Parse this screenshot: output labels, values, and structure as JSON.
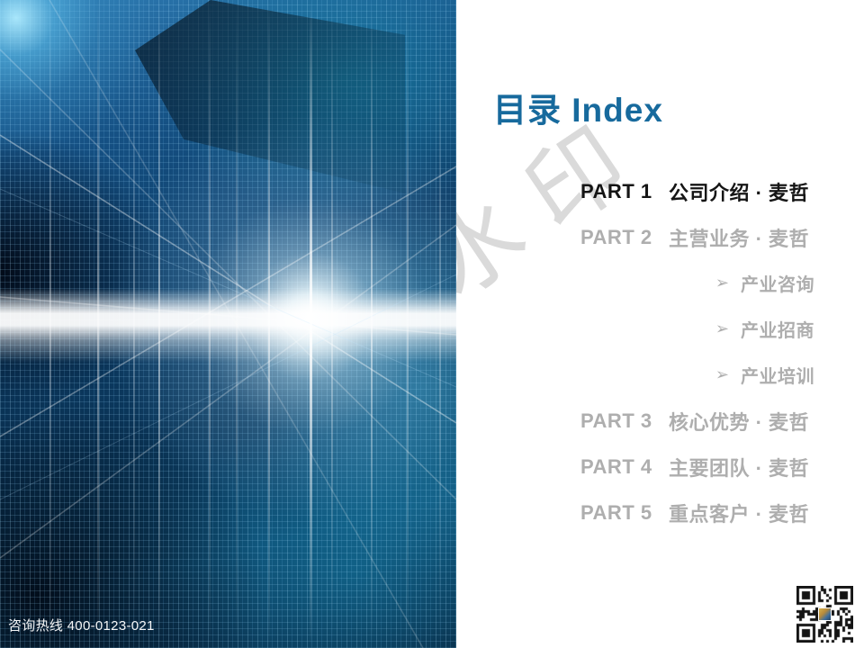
{
  "page": {
    "title": "目录 Index"
  },
  "toc": {
    "bullet_icon": "➢",
    "items": [
      {
        "part": "PART 1",
        "label": "公司介绍 · 麦哲",
        "active": true
      },
      {
        "part": "PART 2",
        "label": "主营业务 · 麦哲",
        "active": false,
        "children": [
          "产业咨询",
          "产业招商",
          "产业培训"
        ]
      },
      {
        "part": "PART 3",
        "label": "核心优势 · 麦哲",
        "active": false
      },
      {
        "part": "PART 4",
        "label": "主要团队 · 麦哲",
        "active": false
      },
      {
        "part": "PART 5",
        "label": "重点客户 · 麦哲",
        "active": false
      }
    ]
  },
  "watermark": {
    "text": "水印"
  },
  "footer": {
    "hotline": "咨询热线 400-0123-021"
  },
  "colors": {
    "title_blue": "#176a9d",
    "active_item": "#151515",
    "inactive_item": "#aeaeae",
    "watermark_gray": "#bcbcbc"
  }
}
